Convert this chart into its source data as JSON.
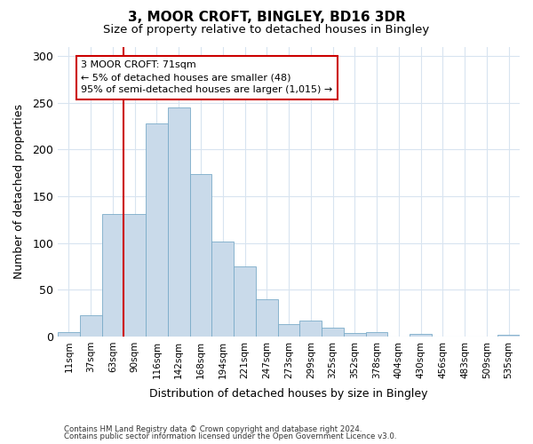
{
  "title_line1": "3, MOOR CROFT, BINGLEY, BD16 3DR",
  "title_line2": "Size of property relative to detached houses in Bingley",
  "xlabel": "Distribution of detached houses by size in Bingley",
  "ylabel": "Number of detached properties",
  "bar_color": "#c9daea",
  "bar_edge_color": "#7aabc8",
  "categories": [
    "11sqm",
    "37sqm",
    "63sqm",
    "90sqm",
    "116sqm",
    "142sqm",
    "168sqm",
    "194sqm",
    "221sqm",
    "247sqm",
    "273sqm",
    "299sqm",
    "325sqm",
    "352sqm",
    "378sqm",
    "404sqm",
    "430sqm",
    "456sqm",
    "483sqm",
    "509sqm",
    "535sqm"
  ],
  "values": [
    5,
    23,
    131,
    131,
    228,
    245,
    174,
    102,
    75,
    40,
    13,
    17,
    9,
    4,
    5,
    0,
    3,
    0,
    0,
    0,
    2
  ],
  "ylim": [
    0,
    310
  ],
  "yticks": [
    0,
    50,
    100,
    150,
    200,
    250,
    300
  ],
  "property_line_x": 2.5,
  "annotation_text": "3 MOOR CROFT: 71sqm\n← 5% of detached houses are smaller (48)\n95% of semi-detached houses are larger (1,015) →",
  "annotation_box_color": "#ffffff",
  "annotation_box_edge_color": "#cc0000",
  "vline_color": "#cc0000",
  "footer_line1": "Contains HM Land Registry data © Crown copyright and database right 2024.",
  "footer_line2": "Contains public sector information licensed under the Open Government Licence v3.0.",
  "background_color": "#ffffff",
  "grid_color": "#d8e4f0"
}
